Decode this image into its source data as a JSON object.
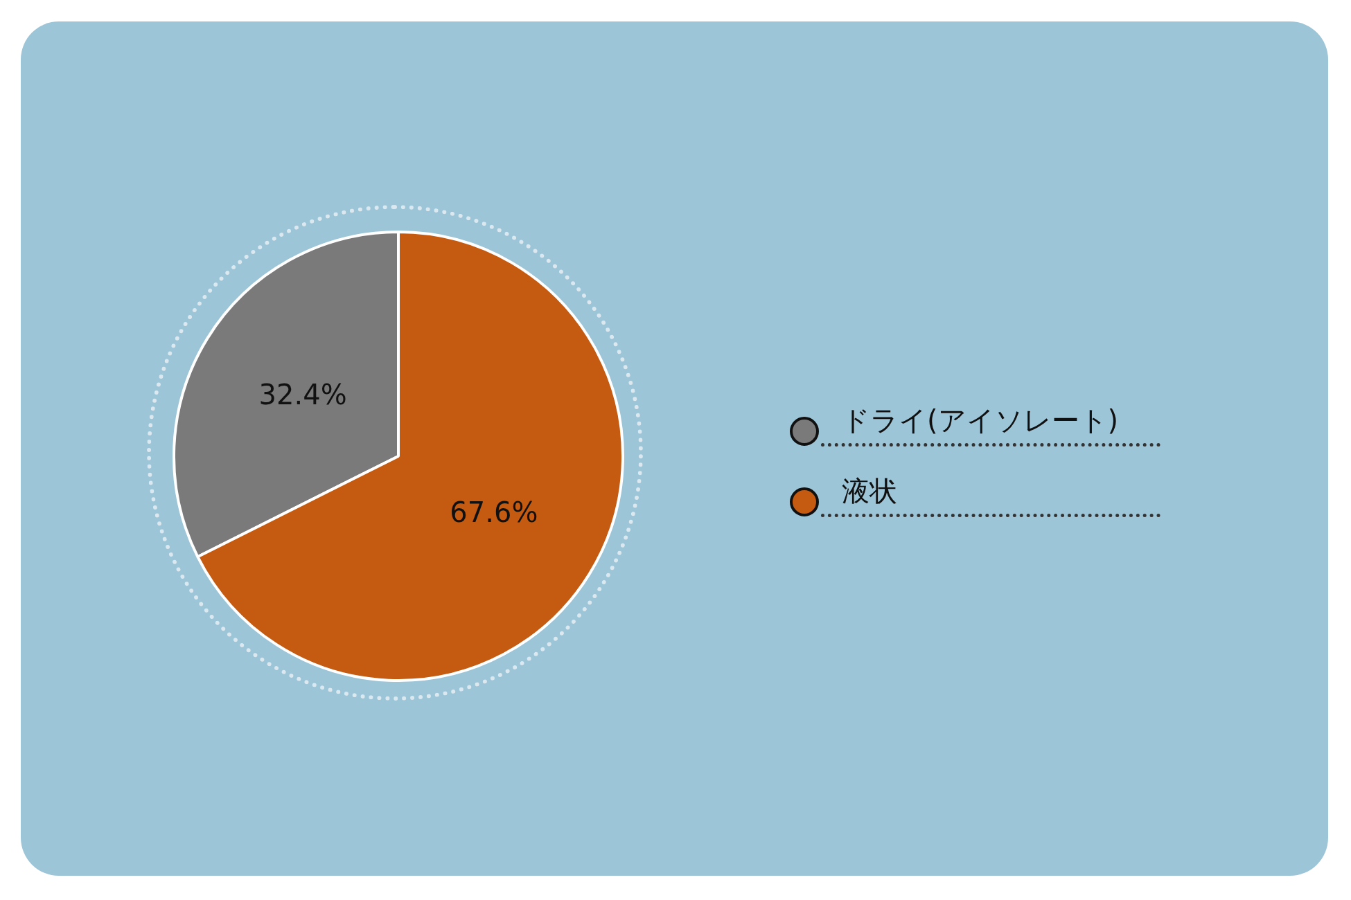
{
  "chart_data": {
    "type": "pie",
    "categories": [
      "ドライ(アイソレート)",
      "液状"
    ],
    "values": [
      32.4,
      67.6
    ],
    "colors": [
      "#7a7a7a",
      "#c55a11"
    ],
    "value_labels": [
      "32.4%",
      "67.6%"
    ],
    "legend": "right"
  }
}
